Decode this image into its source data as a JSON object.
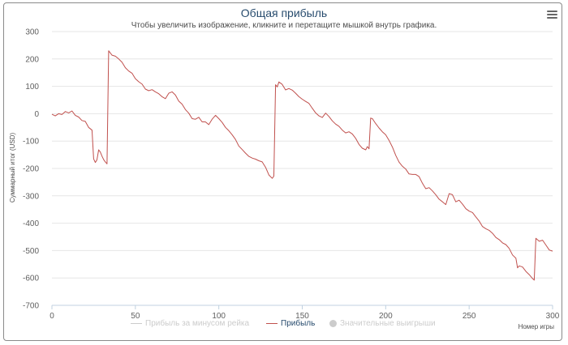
{
  "chart_title": "Общая прибыль",
  "chart_subtitle": "Чтобы увеличить изображение, кликните и перетащите мышкой внутрь графика.",
  "menu_icon": "hamburger-menu-icon",
  "colors": {
    "series": "#c0504d",
    "hidden_legend": "#cccccc",
    "title": "#274b6d",
    "grid": "#e6e6e6"
  },
  "chart_data": {
    "type": "line",
    "title": "Общая прибыль",
    "subtitle": "Чтобы увеличить изображение, кликните и перетащите мышкой внутрь графика.",
    "xlabel": "Номер игры",
    "ylabel": "Суммарный итог (USD)",
    "xlim": [
      0,
      300
    ],
    "ylim": [
      -700,
      300
    ],
    "x_ticks": [
      "0",
      "50",
      "100",
      "150",
      "200",
      "250",
      "300"
    ],
    "y_ticks": [
      "300",
      "200",
      "100",
      "0",
      "-100",
      "-200",
      "-300",
      "-400",
      "-500",
      "-600",
      "-700"
    ],
    "grid": true,
    "legend_position": "bottom",
    "legend": [
      {
        "name": "Прибыль за минусом рейка",
        "visible": false,
        "symbol": "line"
      },
      {
        "name": "Прибыль",
        "visible": true,
        "symbol": "line"
      },
      {
        "name": "Значительные выигрыши",
        "visible": false,
        "symbol": "dot"
      }
    ],
    "series": [
      {
        "name": "Прибыль",
        "points": [
          [
            0,
            -2
          ],
          [
            2,
            -8
          ],
          [
            4,
            0
          ],
          [
            6,
            -3
          ],
          [
            8,
            8
          ],
          [
            10,
            3
          ],
          [
            12,
            10
          ],
          [
            14,
            -6
          ],
          [
            16,
            -12
          ],
          [
            18,
            -25
          ],
          [
            20,
            -28
          ],
          [
            22,
            -50
          ],
          [
            24,
            -60
          ],
          [
            25,
            -165
          ],
          [
            26,
            -178
          ],
          [
            27,
            -168
          ],
          [
            28,
            -132
          ],
          [
            29,
            -140
          ],
          [
            30,
            -155
          ],
          [
            31,
            -168
          ],
          [
            32,
            -176
          ],
          [
            33,
            -183
          ],
          [
            34,
            230
          ],
          [
            36,
            214
          ],
          [
            38,
            210
          ],
          [
            40,
            200
          ],
          [
            42,
            188
          ],
          [
            44,
            168
          ],
          [
            46,
            156
          ],
          [
            48,
            148
          ],
          [
            50,
            128
          ],
          [
            52,
            117
          ],
          [
            54,
            108
          ],
          [
            56,
            90
          ],
          [
            58,
            84
          ],
          [
            60,
            88
          ],
          [
            62,
            80
          ],
          [
            64,
            73
          ],
          [
            66,
            62
          ],
          [
            68,
            55
          ],
          [
            70,
            75
          ],
          [
            72,
            80
          ],
          [
            74,
            68
          ],
          [
            76,
            46
          ],
          [
            78,
            35
          ],
          [
            80,
            15
          ],
          [
            82,
            2
          ],
          [
            84,
            -18
          ],
          [
            86,
            -20
          ],
          [
            88,
            -13
          ],
          [
            90,
            -30
          ],
          [
            92,
            -30
          ],
          [
            94,
            -40
          ],
          [
            96,
            -20
          ],
          [
            98,
            -6
          ],
          [
            100,
            -18
          ],
          [
            102,
            -32
          ],
          [
            104,
            -50
          ],
          [
            106,
            -62
          ],
          [
            108,
            -77
          ],
          [
            110,
            -94
          ],
          [
            112,
            -118
          ],
          [
            114,
            -131
          ],
          [
            116,
            -144
          ],
          [
            118,
            -156
          ],
          [
            120,
            -162
          ],
          [
            122,
            -166
          ],
          [
            124,
            -172
          ],
          [
            126,
            -176
          ],
          [
            128,
            -196
          ],
          [
            130,
            -224
          ],
          [
            132,
            -236
          ],
          [
            133,
            -228
          ],
          [
            134,
            106
          ],
          [
            135,
            98
          ],
          [
            136,
            116
          ],
          [
            138,
            107
          ],
          [
            140,
            87
          ],
          [
            142,
            92
          ],
          [
            144,
            86
          ],
          [
            146,
            75
          ],
          [
            148,
            62
          ],
          [
            150,
            53
          ],
          [
            152,
            45
          ],
          [
            154,
            38
          ],
          [
            156,
            20
          ],
          [
            158,
            3
          ],
          [
            160,
            -8
          ],
          [
            162,
            -14
          ],
          [
            164,
            2
          ],
          [
            166,
            -10
          ],
          [
            168,
            -26
          ],
          [
            170,
            -38
          ],
          [
            172,
            -46
          ],
          [
            174,
            -60
          ],
          [
            176,
            -70
          ],
          [
            178,
            -66
          ],
          [
            180,
            -74
          ],
          [
            182,
            -90
          ],
          [
            184,
            -112
          ],
          [
            186,
            -126
          ],
          [
            188,
            -132
          ],
          [
            189,
            -120
          ],
          [
            190,
            -128
          ],
          [
            191,
            -16
          ],
          [
            192,
            -18
          ],
          [
            194,
            -36
          ],
          [
            196,
            -52
          ],
          [
            198,
            -66
          ],
          [
            200,
            -77
          ],
          [
            202,
            -97
          ],
          [
            204,
            -122
          ],
          [
            206,
            -152
          ],
          [
            208,
            -177
          ],
          [
            210,
            -192
          ],
          [
            212,
            -202
          ],
          [
            214,
            -220
          ],
          [
            216,
            -222
          ],
          [
            218,
            -222
          ],
          [
            220,
            -230
          ],
          [
            222,
            -254
          ],
          [
            224,
            -274
          ],
          [
            226,
            -270
          ],
          [
            228,
            -282
          ],
          [
            230,
            -296
          ],
          [
            232,
            -312
          ],
          [
            234,
            -322
          ],
          [
            236,
            -332
          ],
          [
            238,
            -292
          ],
          [
            240,
            -296
          ],
          [
            242,
            -322
          ],
          [
            244,
            -316
          ],
          [
            246,
            -330
          ],
          [
            248,
            -347
          ],
          [
            250,
            -356
          ],
          [
            252,
            -361
          ],
          [
            254,
            -377
          ],
          [
            256,
            -392
          ],
          [
            258,
            -412
          ],
          [
            260,
            -420
          ],
          [
            262,
            -426
          ],
          [
            264,
            -437
          ],
          [
            266,
            -452
          ],
          [
            268,
            -460
          ],
          [
            270,
            -472
          ],
          [
            272,
            -478
          ],
          [
            274,
            -492
          ],
          [
            276,
            -516
          ],
          [
            278,
            -528
          ],
          [
            279,
            -563
          ],
          [
            280,
            -556
          ],
          [
            282,
            -560
          ],
          [
            284,
            -576
          ],
          [
            286,
            -588
          ],
          [
            288,
            -602
          ],
          [
            289,
            -608
          ],
          [
            290,
            -455
          ],
          [
            292,
            -466
          ],
          [
            294,
            -462
          ],
          [
            296,
            -480
          ],
          [
            298,
            -498
          ],
          [
            300,
            -502
          ]
        ]
      }
    ]
  }
}
